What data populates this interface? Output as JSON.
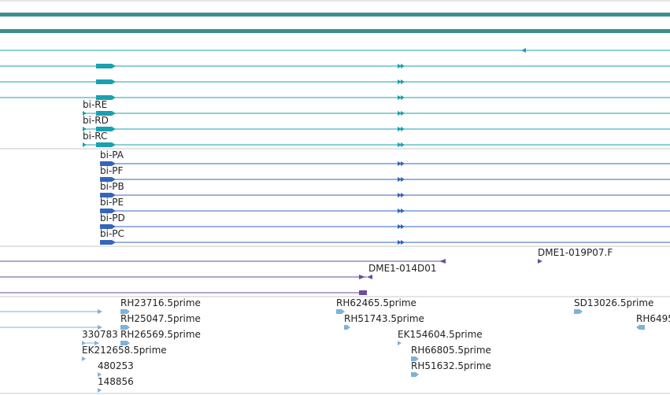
{
  "colors": {
    "divider": "#c8c8c8",
    "gene_span": "#3a8f8b",
    "transcript_teal": "#1aa0b0",
    "transcript_blue": "#3366bb",
    "est_purple": "#6a4e9a",
    "cdna_light": "#7fb2d8"
  },
  "tracks": {
    "transcripts_teal": {
      "labels": [
        "bi-RE",
        "bi-RD",
        "bi-RC"
      ]
    },
    "transcripts_blue": {
      "labels": [
        "bi-PA",
        "bi-PF",
        "bi-PB",
        "bi-PE",
        "bi-PD",
        "bi-PC"
      ]
    },
    "clones": {
      "labels": [
        "DME1-019P07.F",
        "DME1-014D01"
      ]
    },
    "cdna": {
      "labels": [
        "RH23716.5prime",
        "RH25047.5prime",
        "330783",
        "RH26569.5prime",
        "EK212658.5prime",
        "480253",
        "148856",
        "RH62465.5prime",
        "RH51743.5prime",
        "EK154604.5prime",
        "RH66805.5prime",
        "RH51632.5prime",
        "SD13026.5prime",
        "RH6495"
      ]
    }
  }
}
